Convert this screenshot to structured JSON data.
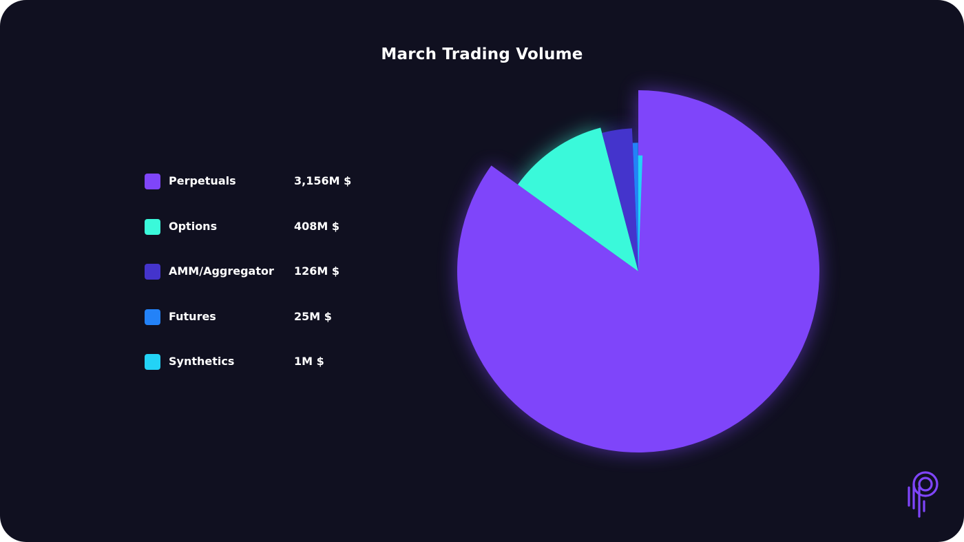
{
  "chart_data": {
    "type": "pie",
    "title": "March Trading Volume",
    "start_angle_deg": 0,
    "direction": "clockwise",
    "exploded": true,
    "slices": [
      {
        "label": "Perpetuals",
        "value": 3156,
        "value_label": "3,156M $",
        "color": "#7F45FA"
      },
      {
        "label": "Options",
        "value": 408,
        "value_label": "408M $",
        "color": "#3AF9DA"
      },
      {
        "label": "AMM/Aggregator",
        "value": 126,
        "value_label": "126M $",
        "color": "#4434CC"
      },
      {
        "label": "Futures",
        "value": 25,
        "value_label": "25M $",
        "color": "#2382F8"
      },
      {
        "label": "Synthetics",
        "value": 1,
        "value_label": "1M $",
        "color": "#23D3F6"
      }
    ],
    "legend_position": "left",
    "background_color": "#101020",
    "text_color": "#FFFFFF"
  },
  "brand": {
    "logo_icon": "p-logo-icon",
    "color": "#7F45FA"
  }
}
